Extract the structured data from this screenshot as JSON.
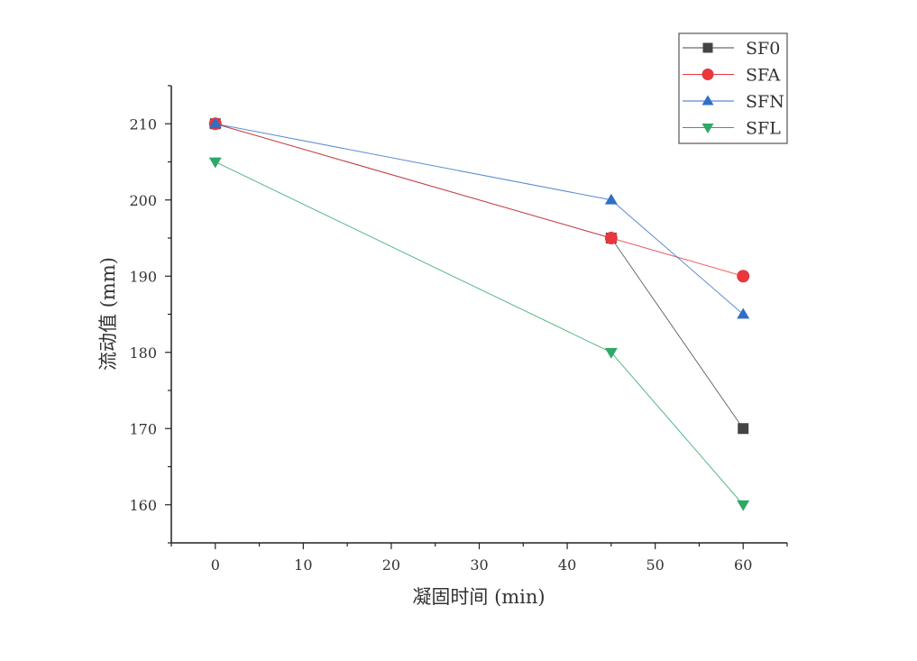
{
  "chart_data": {
    "type": "line",
    "title": "",
    "xlabel": "凝固时间 (min)",
    "ylabel": "流动值 (mm)",
    "xlim": [
      -5,
      65
    ],
    "ylim": [
      155,
      215
    ],
    "xticks": [
      0,
      10,
      20,
      30,
      40,
      50,
      60
    ],
    "yticks": [
      160,
      170,
      180,
      190,
      200,
      210
    ],
    "grid": false,
    "legend_position": "top-right",
    "x": [
      0,
      45,
      60
    ],
    "series": [
      {
        "name": "SF0",
        "values": [
          210,
          195,
          170
        ],
        "color": "#444444",
        "marker": "square"
      },
      {
        "name": "SFA",
        "values": [
          210,
          195,
          190
        ],
        "color": "#e8383d",
        "marker": "circle"
      },
      {
        "name": "SFN",
        "values": [
          210,
          200,
          185
        ],
        "color": "#2f6fc4",
        "marker": "triangle-up"
      },
      {
        "name": "SFL",
        "values": [
          205,
          180,
          160
        ],
        "color": "#2ea866",
        "marker": "triangle-down"
      }
    ]
  }
}
